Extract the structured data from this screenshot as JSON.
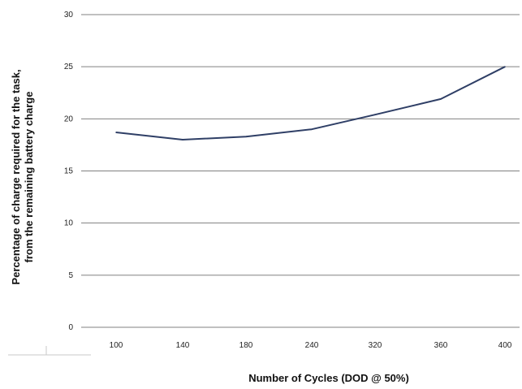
{
  "chart_data": {
    "type": "line",
    "title": "",
    "xlabel": "Number of Cycles (DOD @ 50%)",
    "ylabel_lines": [
      "Percentage of charge required for the task,",
      "from the remaining battery charge"
    ],
    "categories": [
      "100",
      "140",
      "180",
      "240",
      "320",
      "360",
      "400"
    ],
    "series": [
      {
        "values": [
          18.7,
          18.0,
          18.3,
          19.0,
          20.4,
          21.9,
          25.0
        ]
      }
    ],
    "ylim": [
      0,
      30
    ],
    "yticks": [
      "0",
      "5",
      "10",
      "15",
      "20",
      "25",
      "30"
    ],
    "grid": true,
    "legend": "none",
    "colors": {
      "line": "#2f3f66",
      "grid": "#808080"
    }
  }
}
